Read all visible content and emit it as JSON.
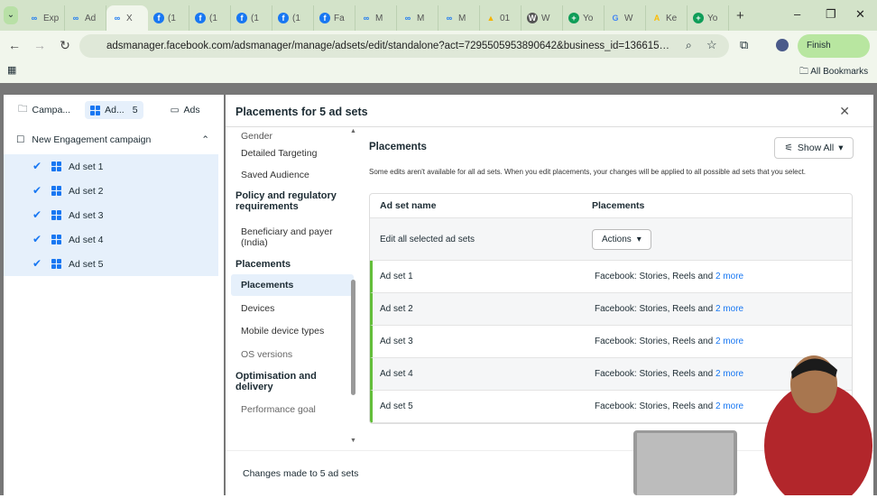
{
  "browser": {
    "tabs": [
      {
        "label": "Exp",
        "icon": "meta"
      },
      {
        "label": "Ad",
        "icon": "meta"
      },
      {
        "label": "X",
        "icon": "meta",
        "active": true
      },
      {
        "label": "(1",
        "icon": "facebook"
      },
      {
        "label": "(1",
        "icon": "facebook"
      },
      {
        "label": "(1",
        "icon": "facebook"
      },
      {
        "label": "(1",
        "icon": "facebook"
      },
      {
        "label": "Fa",
        "icon": "facebook"
      },
      {
        "label": "M",
        "icon": "meta"
      },
      {
        "label": "M",
        "icon": "meta"
      },
      {
        "label": "M",
        "icon": "meta"
      },
      {
        "label": "01",
        "icon": "drive"
      },
      {
        "label": "W",
        "icon": "wordpress"
      },
      {
        "label": "Yo",
        "icon": "sheets"
      },
      {
        "label": "W",
        "icon": "google"
      },
      {
        "label": "Ke",
        "icon": "ads"
      },
      {
        "label": "Yo",
        "icon": "sheets"
      }
    ],
    "new_tab": "+",
    "url": "adsmanager.facebook.com/adsmanager/manage/adsets/edit/standalone?act=7295505953890642&business_id=1366152000711229...",
    "profile_button": "Finish",
    "bookmarks": "All Bookmarks"
  },
  "left": {
    "tabs": [
      {
        "label": "Campa..."
      },
      {
        "label": "Ad...",
        "badge": "5"
      },
      {
        "label": "Ads"
      }
    ],
    "campaign": "New Engagement campaign",
    "adsets": [
      "Ad set 1",
      "Ad set 2",
      "Ad set 3",
      "Ad set 4",
      "Ad set 5"
    ]
  },
  "modal": {
    "title": "Placements for 5 ad sets",
    "side": {
      "gender": "Gender",
      "detailed": "Detailed Targeting",
      "saved": "Saved Audience",
      "policy": "Policy and regulatory requirements",
      "beneficiary": "Beneficiary and payer (India)",
      "placements_h": "Placements",
      "placements": "Placements",
      "devices": "Devices",
      "mobile": "Mobile device types",
      "os": "OS versions",
      "opt": "Optimisation and delivery",
      "goal": "Performance goal"
    },
    "heading": "Placements",
    "show_all": "Show All",
    "note": "Some edits aren't available for all ad sets. When you edit placements, your changes will be applied to all possible ad sets that you select.",
    "col1": "Ad set name",
    "col2": "Placements",
    "edit_all": "Edit all selected ad sets",
    "actions": "Actions",
    "rows": [
      {
        "name": "Ad set 1",
        "placements": "Facebook: Stories, Reels and",
        "more": "2 more"
      },
      {
        "name": "Ad set 2",
        "placements": "Facebook: Stories, Reels and",
        "more": "2 more"
      },
      {
        "name": "Ad set 3",
        "placements": "Facebook: Stories, Reels and",
        "more": "2 more"
      },
      {
        "name": "Ad set 4",
        "placements": "Facebook: Stories, Reels and",
        "more": "2 more"
      },
      {
        "name": "Ad set 5",
        "placements": "Facebook: Stories, Reels and",
        "more": "2 more"
      }
    ],
    "footer": "Changes made to 5 ad sets"
  }
}
